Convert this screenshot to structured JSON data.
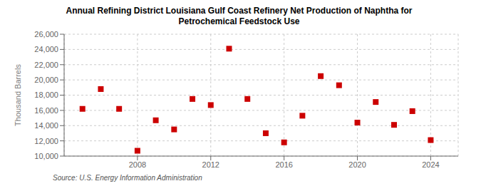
{
  "chart_data": {
    "type": "scatter",
    "title": "Annual Refining District Louisiana Gulf Coast Refinery Net Production of Naphtha for\nPetrochemical Feedstock Use",
    "ylabel": "Thousand Barrels",
    "annotations": [
      "Source: U.S. Energy Information Administration"
    ],
    "x": [
      2005,
      2006,
      2007,
      2008,
      2009,
      2010,
      2011,
      2012,
      2013,
      2014,
      2015,
      2016,
      2017,
      2018,
      2019,
      2020,
      2021,
      2022,
      2023,
      2024
    ],
    "values": [
      16200,
      18800,
      16200,
      10700,
      14700,
      13500,
      17500,
      16700,
      24100,
      17500,
      13000,
      11800,
      15300,
      20500,
      19300,
      14400,
      17100,
      14100,
      15900,
      12100
    ],
    "color": "#cc0000",
    "marker": "square",
    "xlim": [
      2004.0,
      2025.5
    ],
    "xticks": [
      2008,
      2012,
      2016,
      2020,
      2024
    ],
    "ylim": [
      10000,
      26000
    ],
    "yticks": [
      {
        "value": 10000,
        "label": "10,000"
      },
      {
        "value": 12000,
        "label": "12,000"
      },
      {
        "value": 14000,
        "label": "14,000"
      },
      {
        "value": 16000,
        "label": "16,000"
      },
      {
        "value": 18000,
        "label": "18,000"
      },
      {
        "value": 20000,
        "label": "20,000"
      },
      {
        "value": 22000,
        "label": "22,000"
      },
      {
        "value": 24000,
        "label": "24,000"
      },
      {
        "value": 26000,
        "label": "26,000"
      }
    ],
    "grid": true
  }
}
